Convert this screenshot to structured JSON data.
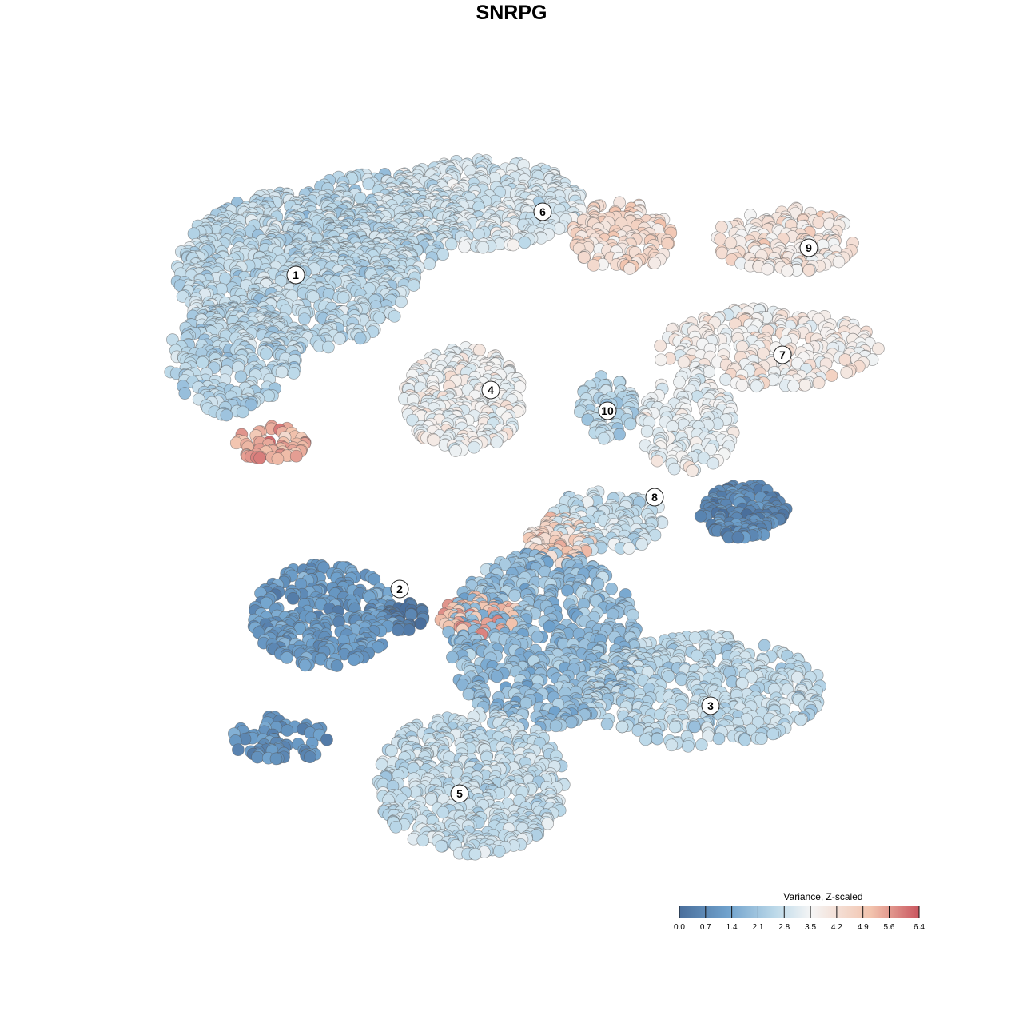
{
  "chart_data": {
    "type": "scatter",
    "title": "SNRPG",
    "legend": {
      "title": "Variance, Z-scaled",
      "ticks": [
        "0.0",
        "0.7",
        "1.4",
        "2.1",
        "2.8",
        "3.5",
        "4.2",
        "4.9",
        "5.6",
        "6.4"
      ],
      "range": [
        0.0,
        6.4
      ],
      "placement": "bottom-right",
      "colors": [
        "#4a6f9c",
        "#6fa1cc",
        "#bcd9e9",
        "#f5f5f5",
        "#f2c3ad",
        "#c9565f"
      ]
    },
    "cluster_labels": [
      "1",
      "2",
      "3",
      "4",
      "5",
      "6",
      "7",
      "8",
      "9",
      "10"
    ],
    "grid": false,
    "axes_visible": false
  }
}
